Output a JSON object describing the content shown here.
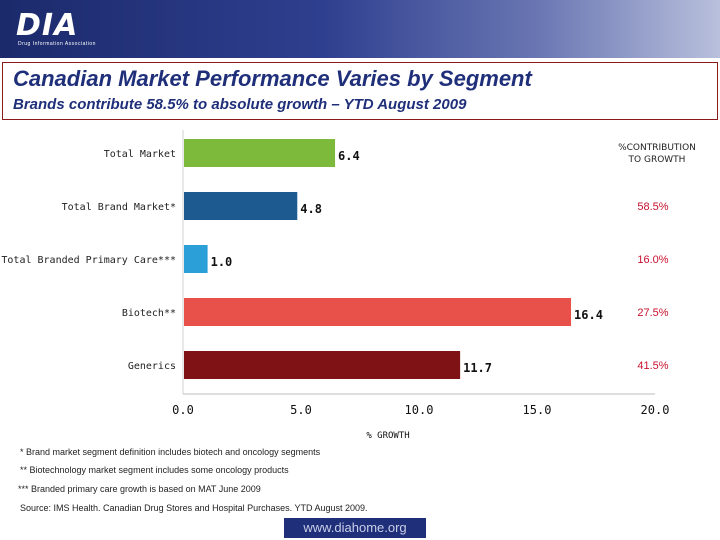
{
  "header": {
    "logo_text": "DIA",
    "logo_subtext": "Drug Information Association"
  },
  "title": "Canadian Market Performance Varies by Segment",
  "subtitle": "Brands contribute 58.5% to absolute growth – YTD August 2009",
  "chart_data": {
    "type": "bar",
    "orientation": "horizontal",
    "categories": [
      "Total Market",
      "Total Brand Market*",
      "Total Branded Primary Care***",
      "Biotech**",
      "Generics"
    ],
    "values": [
      6.4,
      4.8,
      1.0,
      16.4,
      11.7
    ],
    "value_labels": [
      "6.4",
      "4.8",
      "1.0",
      "16.4",
      "11.7"
    ],
    "bar_colors": [
      "#7dba3c",
      "#1c5a8f",
      "#2a9fd8",
      "#e8504a",
      "#7f1215"
    ],
    "xlabel": "% GROWTH",
    "xlim": [
      0,
      20
    ],
    "xticks": [
      "0.0",
      "5.0",
      "10.0",
      "15.0",
      "20.0"
    ],
    "xtick_values": [
      0,
      5,
      10,
      15,
      20
    ],
    "contribution_header": [
      "%CONTRIBUTION",
      "TO GROWTH"
    ],
    "contributions": [
      "",
      "58.5%",
      "16.0%",
      "27.5%",
      "41.5%"
    ],
    "contribution_color": "#c8102e"
  },
  "footnotes": [
    "*  Brand market segment definition includes biotech and oncology segments",
    " **  Biotechnology market segment includes some oncology products",
    "***   Branded primary care growth is based on MAT June 2009",
    " Source: IMS Health. Canadian Drug Stores and Hospital Purchases. YTD August 2009."
  ],
  "footer": "www.diahome.org"
}
